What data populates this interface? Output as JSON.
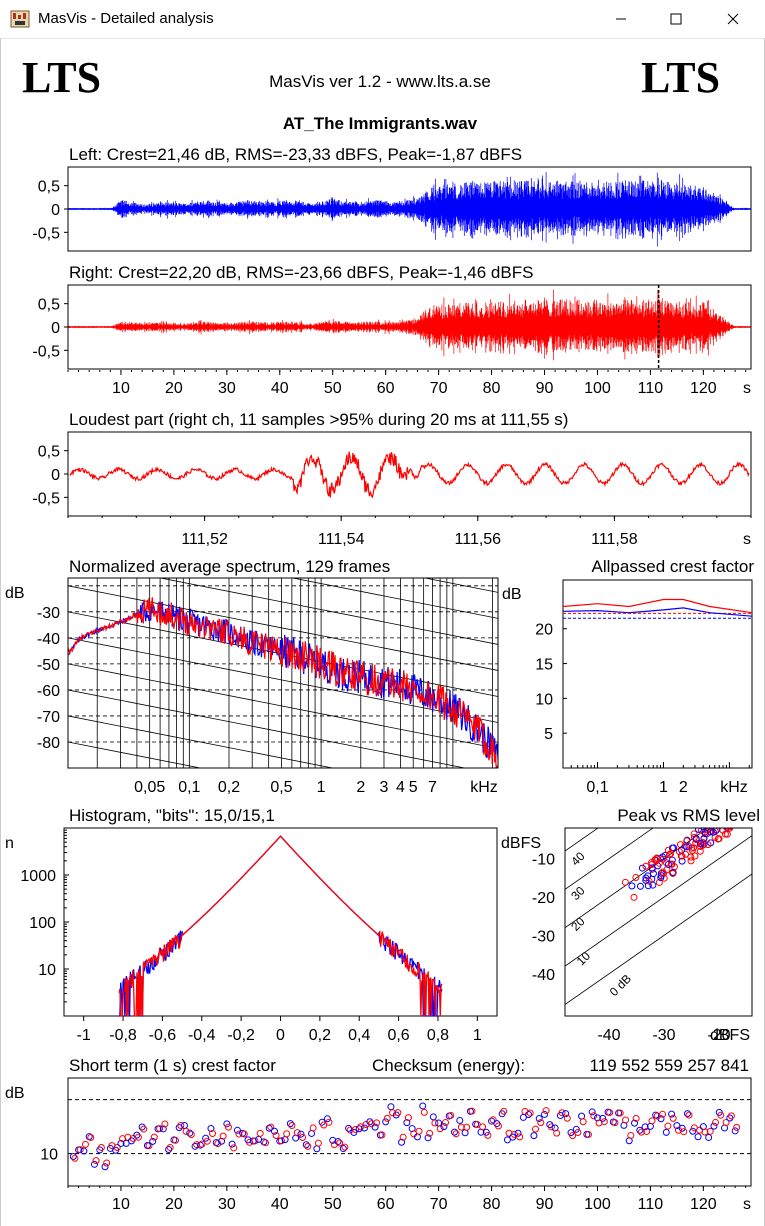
{
  "window": {
    "title": "MasVis - Detailed analysis",
    "min_icon": "minimize-icon",
    "max_icon": "maximize-icon",
    "close_icon": "close-icon"
  },
  "header": {
    "logo_left": "LTS",
    "logo_right": "LTS",
    "version": "MasVis ver 1.2 - www.lts.a.se",
    "filename": "AT_The Immigrants.wav"
  },
  "chart_data": [
    {
      "id": "left",
      "type": "line",
      "title": "Left: Crest=21,46 dB, RMS=-23,33 dBFS, Peak=-1,87 dBFS",
      "yticks": [
        "0,5",
        "0",
        "-0,5"
      ],
      "ylim": [
        -0.9,
        0.9
      ],
      "xlim": [
        0,
        129
      ],
      "color": "#0000ff",
      "envelope": [
        [
          0,
          0.02
        ],
        [
          8,
          0.02
        ],
        [
          10,
          0.2
        ],
        [
          14,
          0.1
        ],
        [
          18,
          0.15
        ],
        [
          22,
          0.12
        ],
        [
          26,
          0.2
        ],
        [
          30,
          0.12
        ],
        [
          34,
          0.2
        ],
        [
          38,
          0.15
        ],
        [
          42,
          0.2
        ],
        [
          46,
          0.12
        ],
        [
          50,
          0.22
        ],
        [
          54,
          0.14
        ],
        [
          58,
          0.2
        ],
        [
          62,
          0.15
        ],
        [
          66,
          0.25
        ],
        [
          68,
          0.45
        ],
        [
          72,
          0.55
        ],
        [
          80,
          0.6
        ],
        [
          90,
          0.62
        ],
        [
          100,
          0.6
        ],
        [
          110,
          0.62
        ],
        [
          120,
          0.5
        ],
        [
          124,
          0.2
        ],
        [
          126,
          0.02
        ],
        [
          129,
          0.02
        ]
      ]
    },
    {
      "id": "right",
      "type": "line",
      "title": "Right: Crest=22,20 dB, RMS=-23,66 dBFS, Peak=-1,46 dBFS",
      "yticks": [
        "0,5",
        "0",
        "-0,5"
      ],
      "ylim": [
        -0.9,
        0.9
      ],
      "xlim": [
        0,
        129
      ],
      "color": "#ff0000",
      "xticks": [
        "10",
        "20",
        "30",
        "40",
        "50",
        "60",
        "70",
        "80",
        "90",
        "100",
        "110",
        "120"
      ],
      "xunit": "s",
      "marker_x": 111.55,
      "envelope": [
        [
          0,
          0.02
        ],
        [
          8,
          0.02
        ],
        [
          10,
          0.12
        ],
        [
          14,
          0.08
        ],
        [
          18,
          0.1
        ],
        [
          22,
          0.08
        ],
        [
          26,
          0.12
        ],
        [
          30,
          0.08
        ],
        [
          34,
          0.12
        ],
        [
          38,
          0.1
        ],
        [
          42,
          0.12
        ],
        [
          46,
          0.08
        ],
        [
          50,
          0.14
        ],
        [
          54,
          0.1
        ],
        [
          58,
          0.12
        ],
        [
          62,
          0.1
        ],
        [
          66,
          0.18
        ],
        [
          68,
          0.45
        ],
        [
          72,
          0.5
        ],
        [
          80,
          0.55
        ],
        [
          90,
          0.6
        ],
        [
          100,
          0.58
        ],
        [
          110,
          0.6
        ],
        [
          120,
          0.5
        ],
        [
          124,
          0.2
        ],
        [
          126,
          0.02
        ],
        [
          129,
          0.02
        ]
      ]
    },
    {
      "id": "loudest",
      "type": "line",
      "title": "Loudest part (right ch, 11 samples >95% during 20 ms at 111,55 s)",
      "yticks": [
        "0,5",
        "0",
        "-0,5"
      ],
      "ylim": [
        -0.9,
        0.9
      ],
      "xlim": [
        111.5,
        111.6
      ],
      "color": "#ff0000",
      "xticks": [
        "111,52",
        "111,54",
        "111,56",
        "111,58"
      ],
      "xtick_values": [
        111.52,
        111.54,
        111.56,
        111.58
      ],
      "xunit": "s"
    },
    {
      "id": "spectrum",
      "type": "line",
      "title": "Normalized average spectrum, 129 frames",
      "ylabel": "dB",
      "yticks": [
        "-30",
        "-40",
        "-50",
        "-60",
        "-70",
        "-80"
      ],
      "ytick_values": [
        -30,
        -40,
        -50,
        -60,
        -70,
        -80
      ],
      "ylim": [
        -90,
        -17
      ],
      "xticks": [
        "0,05",
        "0,1",
        "0,2",
        "0,5",
        "1",
        "2",
        "3",
        "4",
        "5",
        "7"
      ],
      "xtick_values": [
        0.05,
        0.1,
        0.2,
        0.5,
        1,
        2,
        3,
        4,
        5,
        7
      ],
      "xunit": "kHz",
      "xlim": [
        0.012,
        22
      ],
      "points": [
        [
          0.012,
          -46
        ],
        [
          0.015,
          -40
        ],
        [
          0.02,
          -37
        ],
        [
          0.03,
          -34
        ],
        [
          0.04,
          -31
        ],
        [
          0.05,
          -29
        ],
        [
          0.07,
          -31
        ],
        [
          0.1,
          -34
        ],
        [
          0.15,
          -36
        ],
        [
          0.2,
          -38
        ],
        [
          0.3,
          -42
        ],
        [
          0.5,
          -45
        ],
        [
          0.7,
          -47
        ],
        [
          1,
          -50
        ],
        [
          1.5,
          -54
        ],
        [
          2,
          -55
        ],
        [
          3,
          -57
        ],
        [
          4,
          -58
        ],
        [
          5,
          -60
        ],
        [
          7,
          -63
        ],
        [
          10,
          -67
        ],
        [
          15,
          -75
        ],
        [
          22,
          -86
        ]
      ]
    },
    {
      "id": "allpass",
      "type": "line",
      "title": "Allpassed crest factor",
      "ylabel": "dB",
      "yticks": [
        "20",
        "15",
        "10",
        "5"
      ],
      "ytick_values": [
        20,
        15,
        10,
        5
      ],
      "ylim": [
        0,
        27
      ],
      "xticks": [
        "0,1",
        "1",
        "2",
        "kHz"
      ],
      "xlim": [
        0.03,
        22
      ],
      "series": [
        {
          "color": "#ff0000",
          "points": [
            [
              0.03,
              23.2
            ],
            [
              0.1,
              23.6
            ],
            [
              0.3,
              23.2
            ],
            [
              1,
              24.2
            ],
            [
              2,
              24.2
            ],
            [
              5,
              23.2
            ],
            [
              22,
              22.3
            ]
          ]
        },
        {
          "color": "#0000ff",
          "points": [
            [
              0.03,
              22.5
            ],
            [
              0.1,
              22.6
            ],
            [
              0.3,
              22.3
            ],
            [
              1,
              22.7
            ],
            [
              2,
              23.0
            ],
            [
              5,
              22.3
            ],
            [
              22,
              21.8
            ]
          ]
        }
      ],
      "dashed": [
        {
          "color": "#ff0000",
          "y": 22.2
        },
        {
          "color": "#0000ff",
          "y": 21.5
        }
      ]
    },
    {
      "id": "histogram",
      "type": "line",
      "title": "Histogram, \"bits\": 15,0/15,1",
      "ylabel": "n",
      "yticks": [
        "1000",
        "100",
        "10"
      ],
      "ytick_values": [
        1000,
        100,
        10
      ],
      "xticks": [
        "-1",
        "-0,8",
        "-0,6",
        "-0,4",
        "-0,2",
        "0",
        "0,2",
        "0,4",
        "0,6",
        "0,8",
        "1"
      ],
      "xtick_values": [
        -1,
        -0.8,
        -0.6,
        -0.4,
        -0.2,
        0,
        0.2,
        0.4,
        0.6,
        0.8,
        1
      ],
      "xlim": [
        -1.1,
        1.1
      ],
      "ylog_range": [
        0,
        4
      ],
      "peak_n": 6000,
      "edge": 0.82
    },
    {
      "id": "peakrms",
      "type": "scatter",
      "title": "Peak vs RMS level",
      "ylabel": "dBFS",
      "xunit": "dBFS",
      "yticks": [
        "-10",
        "-20",
        "-30",
        "-40"
      ],
      "ytick_values": [
        -10,
        -20,
        -30,
        -40
      ],
      "ylim": [
        -51,
        -2
      ],
      "xticks": [
        "-40",
        "-30",
        "-20"
      ],
      "xtick_values": [
        -40,
        -30,
        -20
      ],
      "xlim": [
        -48,
        -14
      ],
      "crest_labels": [
        "40",
        "30",
        "20",
        "10",
        "0 dB"
      ],
      "crest_values": [
        40,
        30,
        20,
        10,
        0
      ]
    },
    {
      "id": "shortcrest",
      "type": "scatter",
      "title": "Short term (1 s) crest factor",
      "ylabel": "dB",
      "checksum_label": "Checksum (energy):",
      "checksum": "119 552 559 257 841",
      "yticks": [
        "10"
      ],
      "ytick_values": [
        10
      ],
      "ylim": [
        4,
        24
      ],
      "dashed_y": [
        10,
        20
      ],
      "xticks": [
        "10",
        "20",
        "30",
        "40",
        "50",
        "60",
        "70",
        "80",
        "90",
        "100",
        "110",
        "120"
      ],
      "xunit": "s",
      "xlim": [
        0,
        129
      ]
    }
  ]
}
